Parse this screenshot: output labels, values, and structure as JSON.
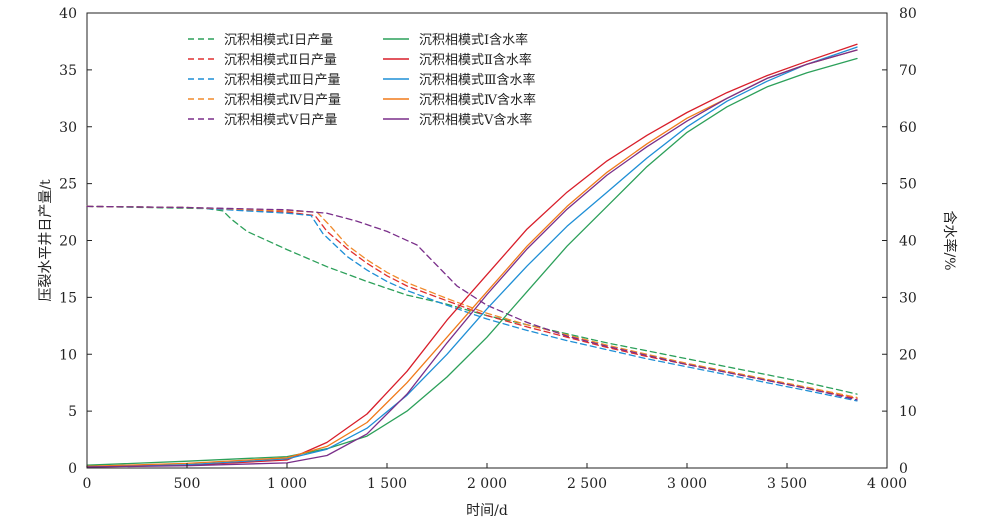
{
  "chart_data": {
    "type": "line",
    "xlabel": "时间/d",
    "ylabel_left": "压裂水平井日产量/t",
    "ylabel_right": "含水率/%",
    "xlim": [
      0,
      4000
    ],
    "ylim_left": [
      0,
      40
    ],
    "ylim_right": [
      0,
      80
    ],
    "x_ticks": [
      0,
      500,
      1000,
      1500,
      2000,
      2500,
      3000,
      3500,
      4000
    ],
    "x_tick_labels": [
      "0",
      "500",
      "1 000",
      "1 500",
      "2 000",
      "2 500",
      "3 000",
      "3 500",
      "4 000"
    ],
    "y_left_ticks": [
      0,
      5,
      10,
      15,
      20,
      25,
      30,
      35,
      40
    ],
    "y_left_tick_labels": [
      "0",
      "5",
      "10",
      "15",
      "20",
      "25",
      "30",
      "35",
      "40"
    ],
    "y_right_ticks": [
      0,
      10,
      20,
      30,
      40,
      50,
      60,
      70,
      80
    ],
    "y_right_tick_labels": [
      "0",
      "10",
      "20",
      "30",
      "40",
      "50",
      "60",
      "70",
      "80"
    ],
    "grid": false,
    "legend_position": "top-center",
    "series": [
      {
        "name": "沉积相模式Ⅰ日产量",
        "axis": "left",
        "style": "dashed",
        "color": "#2ca05a",
        "x": [
          0,
          300,
          600,
          680,
          720,
          800,
          1000,
          1200,
          1400,
          1600,
          1800,
          2000,
          2200,
          2400,
          2600,
          2800,
          3000,
          3200,
          3400,
          3600,
          3850
        ],
        "y": [
          23,
          22.9,
          22.8,
          22.6,
          21.9,
          20.8,
          19.2,
          17.7,
          16.4,
          15.2,
          14.4,
          13.4,
          12.6,
          11.8,
          11.0,
          10.3,
          9.6,
          8.9,
          8.2,
          7.5,
          6.5
        ]
      },
      {
        "name": "沉积相模式Ⅱ日产量",
        "axis": "left",
        "style": "dashed",
        "color": "#e03030",
        "x": [
          0,
          500,
          1000,
          1140,
          1200,
          1300,
          1400,
          1500,
          1600,
          1800,
          2000,
          2200,
          2400,
          2600,
          2800,
          3000,
          3200,
          3400,
          3600,
          3850
        ],
        "y": [
          23,
          22.9,
          22.5,
          22.2,
          20.8,
          19.3,
          18.0,
          16.9,
          16.0,
          14.7,
          13.4,
          12.4,
          11.5,
          10.6,
          9.8,
          9.1,
          8.4,
          7.7,
          7.0,
          6.1
        ]
      },
      {
        "name": "沉积相模式Ⅲ日产量",
        "axis": "left",
        "style": "dashed",
        "color": "#1f8fd6",
        "x": [
          0,
          500,
          1000,
          1120,
          1180,
          1300,
          1400,
          1500,
          1600,
          1800,
          2000,
          2200,
          2400,
          2600,
          2800,
          3000,
          3200,
          3400,
          3600,
          3850
        ],
        "y": [
          23,
          22.9,
          22.4,
          22.2,
          20.6,
          18.6,
          17.4,
          16.4,
          15.6,
          14.3,
          13.1,
          12.1,
          11.2,
          10.4,
          9.6,
          8.9,
          8.2,
          7.5,
          6.8,
          5.9
        ]
      },
      {
        "name": "沉积相模式Ⅳ日产量",
        "axis": "left",
        "style": "dashed",
        "color": "#f08a2c",
        "x": [
          0,
          500,
          1000,
          1150,
          1220,
          1300,
          1400,
          1500,
          1600,
          1800,
          2000,
          2200,
          2400,
          2600,
          2800,
          3000,
          3200,
          3400,
          3600,
          3850
        ],
        "y": [
          23,
          22.9,
          22.6,
          22.5,
          21.2,
          19.6,
          18.3,
          17.2,
          16.3,
          14.9,
          13.6,
          12.6,
          11.7,
          10.8,
          10.0,
          9.2,
          8.5,
          7.8,
          7.1,
          6.2
        ]
      },
      {
        "name": "沉积相模式Ⅴ日产量",
        "axis": "left",
        "style": "dashed",
        "color": "#7a2f8a",
        "x": [
          0,
          500,
          1000,
          1200,
          1350,
          1500,
          1650,
          1750,
          1850,
          2000,
          2200,
          2400,
          2600,
          2800,
          3000,
          3200,
          3400,
          3600,
          3850
        ],
        "y": [
          23,
          22.9,
          22.7,
          22.4,
          21.7,
          20.8,
          19.6,
          17.8,
          16.0,
          14.3,
          12.8,
          11.6,
          10.7,
          9.9,
          9.1,
          8.4,
          7.7,
          7.0,
          6.0
        ]
      },
      {
        "name": "沉积相模式Ⅰ含水率",
        "axis": "right",
        "style": "solid",
        "color": "#2ca05a",
        "x": [
          0,
          500,
          1000,
          1200,
          1400,
          1600,
          1800,
          2000,
          2200,
          2400,
          2600,
          2800,
          3000,
          3200,
          3400,
          3600,
          3850
        ],
        "y": [
          0.5,
          1.2,
          2.0,
          3.4,
          5.6,
          10,
          16,
          23,
          31,
          39,
          46,
          53,
          59,
          63.5,
          67,
          69.5,
          72
        ]
      },
      {
        "name": "沉积相模式Ⅱ含水率",
        "axis": "right",
        "style": "solid",
        "color": "#d81e2a",
        "x": [
          0,
          500,
          1000,
          1200,
          1400,
          1600,
          1800,
          2000,
          2200,
          2400,
          2600,
          2800,
          3000,
          3200,
          3400,
          3600,
          3850
        ],
        "y": [
          0.2,
          0.5,
          1.4,
          4.5,
          9.5,
          17,
          26,
          34,
          42,
          48.5,
          54,
          58.5,
          62.5,
          66,
          69,
          71.5,
          74.5
        ]
      },
      {
        "name": "沉积相模式Ⅲ含水率",
        "axis": "right",
        "style": "solid",
        "color": "#1f8fd6",
        "x": [
          0,
          500,
          1000,
          1200,
          1400,
          1600,
          1800,
          2000,
          2200,
          2400,
          2600,
          2800,
          3000,
          3200,
          3400,
          3600,
          3850
        ],
        "y": [
          0.2,
          0.6,
          1.6,
          3.3,
          7.0,
          12.8,
          20,
          28,
          35.5,
          42.5,
          48.5,
          54.5,
          60,
          64.5,
          68,
          71,
          74
        ]
      },
      {
        "name": "沉积相模式Ⅳ含水率",
        "axis": "right",
        "style": "solid",
        "color": "#f07a1a",
        "x": [
          0,
          500,
          1000,
          1200,
          1400,
          1600,
          1800,
          2000,
          2200,
          2400,
          2600,
          2800,
          3000,
          3200,
          3400,
          3600,
          3850
        ],
        "y": [
          0.3,
          0.8,
          1.8,
          3.8,
          8.0,
          15,
          23,
          31,
          39,
          46,
          52,
          57,
          61.5,
          65,
          68.5,
          71,
          73.5
        ]
      },
      {
        "name": "沉积相模式Ⅴ含水率",
        "axis": "right",
        "style": "solid",
        "color": "#7a2f8a",
        "x": [
          0,
          500,
          1000,
          1200,
          1400,
          1600,
          1800,
          2000,
          2200,
          2400,
          2600,
          2800,
          3000,
          3200,
          3400,
          3600,
          3850
        ],
        "y": [
          0.2,
          0.4,
          0.9,
          2.2,
          6.0,
          13,
          22,
          30.5,
          38.5,
          45.5,
          51.5,
          56.5,
          61,
          65,
          68.5,
          71,
          73.5
        ]
      }
    ]
  }
}
